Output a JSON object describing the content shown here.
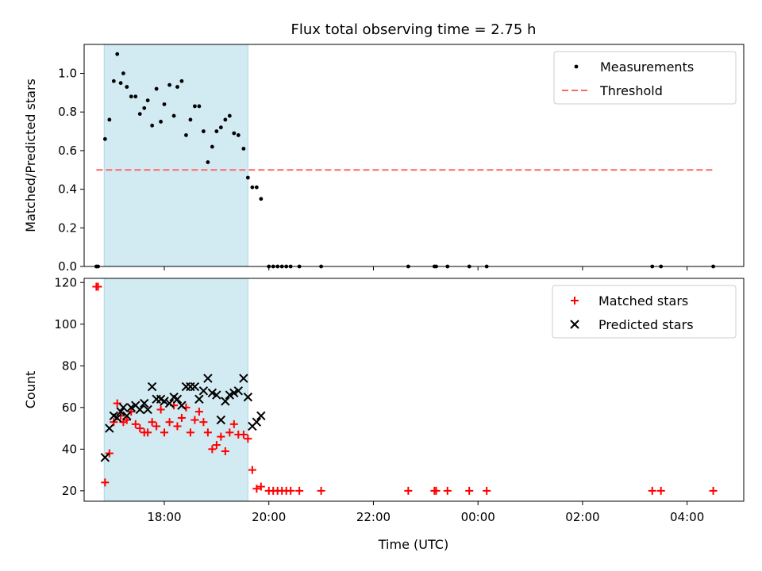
{
  "chart_data": {
    "title": "Flux total observing time = 2.75 h",
    "time_range_note": "x axis is time of day; ticks cross midnight",
    "x_ticks": [
      "18:00",
      "20:00",
      "22:00",
      "00:00",
      "02:00",
      "04:00"
    ],
    "xlabel": "Time (UTC)",
    "shaded_interval": {
      "start": "16:51",
      "end": "19:36",
      "color": "#add8e6"
    },
    "panels": [
      {
        "type": "scatter",
        "ylabel": "Matched/Predicted stars",
        "ylim": [
          0,
          1.15
        ],
        "y_ticks": [
          "0.0",
          "0.2",
          "0.4",
          "0.6",
          "0.8",
          "1.0"
        ],
        "legend": {
          "placement": "top-right",
          "entries": [
            "Measurements",
            "Threshold"
          ]
        },
        "series": [
          {
            "name": "Measurements",
            "color": "#000000",
            "marker": "dot",
            "points": [
              [
                "16:42",
                0.0
              ],
              [
                "16:44",
                0.0
              ],
              [
                "16:52",
                0.66
              ],
              [
                "16:57",
                0.76
              ],
              [
                "17:02",
                0.96
              ],
              [
                "17:06",
                1.1
              ],
              [
                "17:10",
                0.95
              ],
              [
                "17:13",
                1.0
              ],
              [
                "17:17",
                0.93
              ],
              [
                "17:22",
                0.88
              ],
              [
                "17:27",
                0.88
              ],
              [
                "17:32",
                0.79
              ],
              [
                "17:37",
                0.82
              ],
              [
                "17:41",
                0.86
              ],
              [
                "17:46",
                0.73
              ],
              [
                "17:51",
                0.92
              ],
              [
                "17:56",
                0.75
              ],
              [
                "18:00",
                0.84
              ],
              [
                "18:06",
                0.94
              ],
              [
                "18:11",
                0.78
              ],
              [
                "18:15",
                0.93
              ],
              [
                "18:20",
                0.96
              ],
              [
                "18:25",
                0.68
              ],
              [
                "18:30",
                0.76
              ],
              [
                "18:35",
                0.83
              ],
              [
                "18:40",
                0.83
              ],
              [
                "18:45",
                0.7
              ],
              [
                "18:50",
                0.54
              ],
              [
                "18:55",
                0.62
              ],
              [
                "19:00",
                0.7
              ],
              [
                "19:05",
                0.72
              ],
              [
                "19:10",
                0.76
              ],
              [
                "19:15",
                0.78
              ],
              [
                "19:20",
                0.69
              ],
              [
                "19:25",
                0.68
              ],
              [
                "19:31",
                0.61
              ],
              [
                "19:36",
                0.46
              ],
              [
                "19:41",
                0.41
              ],
              [
                "19:46",
                0.41
              ],
              [
                "19:51",
                0.35
              ],
              [
                "20:00",
                0.0
              ],
              [
                "20:05",
                0.0
              ],
              [
                "20:10",
                0.0
              ],
              [
                "20:15",
                0.0
              ],
              [
                "20:20",
                0.0
              ],
              [
                "20:25",
                0.0
              ],
              [
                "20:35",
                0.0
              ],
              [
                "21:00",
                0.0
              ],
              [
                "22:40",
                0.0
              ],
              [
                "23:10",
                0.0
              ],
              [
                "23:12",
                0.0
              ],
              [
                "23:25",
                0.0
              ],
              [
                "23:50",
                0.0
              ],
              [
                "00:10",
                0.0
              ],
              [
                "03:20",
                0.0
              ],
              [
                "03:30",
                0.0
              ],
              [
                "04:30",
                0.0
              ]
            ]
          },
          {
            "name": "Threshold",
            "color": "#ff6666",
            "style": "dashed",
            "points": [
              [
                "16:42",
                0.5
              ],
              [
                "04:30",
                0.5
              ]
            ]
          }
        ]
      },
      {
        "type": "scatter",
        "ylabel": "Count",
        "ylim": [
          15,
          122
        ],
        "y_ticks": [
          "20",
          "40",
          "60",
          "80",
          "100",
          "120"
        ],
        "legend": {
          "placement": "top-right",
          "entries": [
            "Matched stars",
            "Predicted stars"
          ]
        },
        "series": [
          {
            "name": "Matched stars",
            "color": "#ff0000",
            "marker": "plus",
            "points": [
              [
                "16:42",
                118
              ],
              [
                "16:44",
                118
              ],
              [
                "16:52",
                24
              ],
              [
                "16:57",
                38
              ],
              [
                "17:02",
                53
              ],
              [
                "17:06",
                62
              ],
              [
                "17:10",
                56
              ],
              [
                "17:13",
                53
              ],
              [
                "17:17",
                54
              ],
              [
                "17:22",
                58
              ],
              [
                "17:27",
                52
              ],
              [
                "17:32",
                50
              ],
              [
                "17:37",
                48
              ],
              [
                "17:41",
                48
              ],
              [
                "17:46",
                53
              ],
              [
                "17:51",
                51
              ],
              [
                "17:56",
                59
              ],
              [
                "18:00",
                48
              ],
              [
                "18:06",
                53
              ],
              [
                "18:11",
                61
              ],
              [
                "18:15",
                51
              ],
              [
                "18:20",
                55
              ],
              [
                "18:25",
                60
              ],
              [
                "18:30",
                48
              ],
              [
                "18:35",
                54
              ],
              [
                "18:40",
                58
              ],
              [
                "18:45",
                53
              ],
              [
                "18:50",
                48
              ],
              [
                "18:55",
                40
              ],
              [
                "19:00",
                42
              ],
              [
                "19:05",
                46
              ],
              [
                "19:10",
                39
              ],
              [
                "19:15",
                48
              ],
              [
                "19:20",
                52
              ],
              [
                "19:25",
                47
              ],
              [
                "19:31",
                47
              ],
              [
                "19:36",
                45
              ],
              [
                "19:41",
                30
              ],
              [
                "19:46",
                21
              ],
              [
                "19:51",
                22
              ],
              [
                "20:00",
                20
              ],
              [
                "20:05",
                20
              ],
              [
                "20:10",
                20
              ],
              [
                "20:15",
                20
              ],
              [
                "20:20",
                20
              ],
              [
                "20:25",
                20
              ],
              [
                "20:35",
                20
              ],
              [
                "21:00",
                20
              ],
              [
                "22:40",
                20
              ],
              [
                "23:10",
                20
              ],
              [
                "23:12",
                20
              ],
              [
                "23:25",
                20
              ],
              [
                "23:50",
                20
              ],
              [
                "00:10",
                20
              ],
              [
                "03:20",
                20
              ],
              [
                "03:30",
                20
              ],
              [
                "04:30",
                20
              ]
            ]
          },
          {
            "name": "Predicted stars",
            "color": "#000000",
            "marker": "x",
            "points": [
              [
                "16:52",
                36
              ],
              [
                "16:57",
                50
              ],
              [
                "17:02",
                56
              ],
              [
                "17:06",
                55
              ],
              [
                "17:10",
                58
              ],
              [
                "17:13",
                60
              ],
              [
                "17:17",
                56
              ],
              [
                "17:22",
                60
              ],
              [
                "17:27",
                61
              ],
              [
                "17:32",
                59
              ],
              [
                "17:37",
                62
              ],
              [
                "17:41",
                59
              ],
              [
                "17:46",
                70
              ],
              [
                "17:51",
                64
              ],
              [
                "17:56",
                64
              ],
              [
                "18:00",
                63
              ],
              [
                "18:06",
                62
              ],
              [
                "18:11",
                65
              ],
              [
                "18:15",
                64
              ],
              [
                "18:20",
                61
              ],
              [
                "18:25",
                70
              ],
              [
                "18:30",
                70
              ],
              [
                "18:35",
                70
              ],
              [
                "18:40",
                64
              ],
              [
                "18:45",
                68
              ],
              [
                "18:50",
                74
              ],
              [
                "18:55",
                67
              ],
              [
                "19:00",
                66
              ],
              [
                "19:05",
                54
              ],
              [
                "19:10",
                63
              ],
              [
                "19:15",
                66
              ],
              [
                "19:20",
                67
              ],
              [
                "19:25",
                68
              ],
              [
                "19:31",
                74
              ],
              [
                "19:36",
                65
              ],
              [
                "19:41",
                51
              ],
              [
                "19:46",
                53
              ],
              [
                "19:51",
                56
              ]
            ]
          }
        ]
      }
    ]
  }
}
